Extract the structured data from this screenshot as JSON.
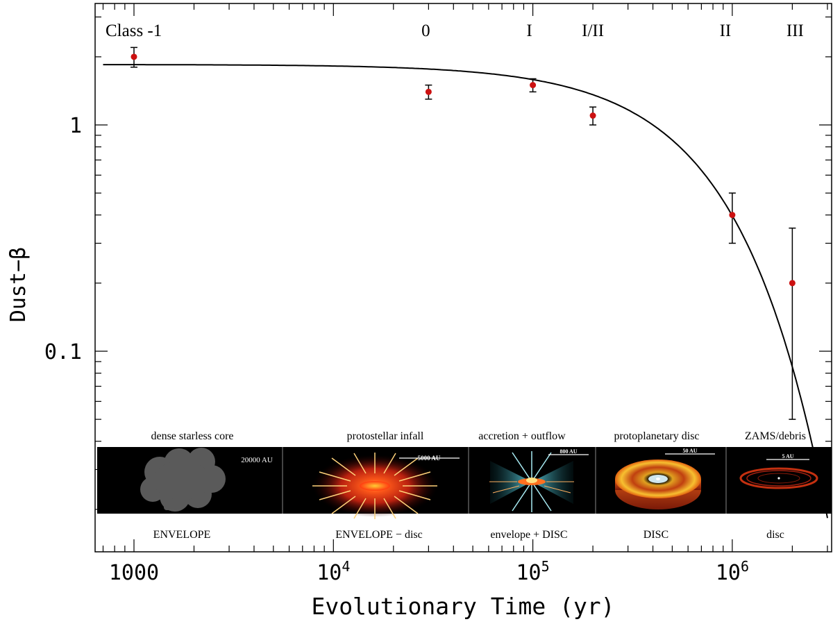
{
  "chart_data": {
    "type": "scatter",
    "xlabel": "Evolutionary Time (yr)",
    "ylabel": "Dust−β",
    "xscale": "log",
    "yscale": "log",
    "xlim": [
      700,
      3000000
    ],
    "ylim": [
      0.02,
      4.0
    ],
    "x_ticks": [
      {
        "value": 1000,
        "label": "1000",
        "sup": ""
      },
      {
        "value": 10000,
        "label": "10",
        "sup": "4"
      },
      {
        "value": 100000,
        "label": "10",
        "sup": "5"
      },
      {
        "value": 1000000,
        "label": "10",
        "sup": "6"
      }
    ],
    "y_ticks": [
      {
        "value": 1,
        "label": "1"
      },
      {
        "value": 0.1,
        "label": "0.1"
      }
    ],
    "points": [
      {
        "x": 1000,
        "y": 2.0,
        "ylo": 1.8,
        "yhi": 2.2
      },
      {
        "x": 30000,
        "y": 1.4,
        "ylo": 1.3,
        "yhi": 1.5
      },
      {
        "x": 100000,
        "y": 1.5,
        "ylo": 1.4,
        "yhi": 1.6
      },
      {
        "x": 200000,
        "y": 1.1,
        "ylo": 1.0,
        "yhi": 1.2
      },
      {
        "x": 1000000,
        "y": 0.4,
        "ylo": 0.3,
        "yhi": 0.5
      },
      {
        "x": 2000000,
        "y": 0.2,
        "ylo": 0.05,
        "yhi": 0.35
      }
    ],
    "fit_curve": {
      "model": "beta = A * exp(-t / tau)",
      "A": 1.85,
      "tau": 650000
    },
    "class_labels": [
      {
        "text": "Class -1",
        "x": 1000
      },
      {
        "text": "0",
        "x": 30000
      },
      {
        "text": "I",
        "x": 100000
      },
      {
        "text": "I/II",
        "x": 200000
      },
      {
        "text": "II",
        "x": 1000000
      },
      {
        "text": "III",
        "x": 2000000
      }
    ],
    "stage_panels": [
      {
        "top_label": "dense starless core",
        "bottom_label": "ENVELOPE",
        "scale": "20000 AU",
        "icon": "cloud-core-icon"
      },
      {
        "top_label": "protostellar infall",
        "bottom_label": "ENVELOPE − disc",
        "scale": "5000 AU",
        "icon": "infall-icon"
      },
      {
        "top_label": "accretion + outflow",
        "bottom_label": "envelope + DISC",
        "scale": "800 AU",
        "icon": "outflow-icon"
      },
      {
        "top_label": "protoplanetary disc",
        "bottom_label": "DISC",
        "scale": "50 AU",
        "icon": "disc-icon"
      },
      {
        "top_label": "ZAMS/debris",
        "bottom_label": "disc",
        "scale": "5 AU",
        "icon": "debris-ring-icon"
      }
    ],
    "colors": {
      "point": "#cc1111",
      "line": "#000000",
      "panel_bg": "#000000",
      "cloud": "#5a5a5a",
      "infall_core": "#ff5a1a",
      "outflow": "#7fd8e8",
      "disc": "#f08a2a"
    }
  }
}
